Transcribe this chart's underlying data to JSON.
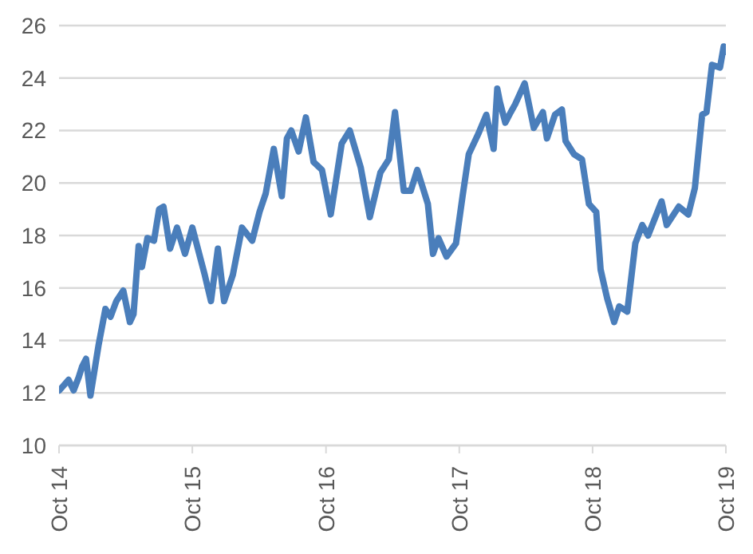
{
  "chart_data": {
    "type": "line",
    "x": [
      "2014-10-02",
      "2014-10-27",
      "2014-11-10",
      "2014-11-24",
      "2014-12-03",
      "2014-12-14",
      "2014-12-26",
      "2015-01-17",
      "2015-02-05",
      "2015-02-19",
      "2015-03-07",
      "2015-03-26",
      "2015-04-13",
      "2015-04-23",
      "2015-05-07",
      "2015-05-16",
      "2015-05-31",
      "2015-06-18",
      "2015-07-02",
      "2015-07-14",
      "2015-08-01",
      "2015-08-20",
      "2015-09-11",
      "2015-10-01",
      "2015-11-04",
      "2015-11-21",
      "2015-12-10",
      "2015-12-27",
      "2016-01-20",
      "2016-02-14",
      "2016-03-13",
      "2016-04-02",
      "2016-04-19",
      "2016-05-11",
      "2016-06-02",
      "2016-06-16",
      "2016-06-28",
      "2016-07-18",
      "2016-08-07",
      "2016-08-28",
      "2016-09-20",
      "2016-10-14",
      "2016-11-13",
      "2016-12-05",
      "2017-01-04",
      "2017-01-29",
      "2017-02-27",
      "2017-03-22",
      "2017-04-08",
      "2017-05-02",
      "2017-05-21",
      "2017-06-08",
      "2017-07-07",
      "2017-07-21",
      "2017-08-05",
      "2017-08-27",
      "2017-09-22",
      "2017-10-10",
      "2017-10-27",
      "2017-11-23",
      "2017-12-14",
      "2018-01-03",
      "2018-01-13",
      "2018-01-20",
      "2018-02-04",
      "2018-02-19",
      "2018-03-03",
      "2018-03-29",
      "2018-04-23",
      "2018-05-18",
      "2018-05-29",
      "2018-06-20",
      "2018-07-09",
      "2018-07-19",
      "2018-08-11",
      "2018-09-02",
      "2018-09-21",
      "2018-10-11",
      "2018-10-23",
      "2018-11-10",
      "2018-11-29",
      "2018-12-13",
      "2019-01-04",
      "2019-01-26",
      "2019-02-14",
      "2019-03-02",
      "2019-04-08",
      "2019-04-22",
      "2019-05-25",
      "2019-06-20",
      "2019-07-08",
      "2019-07-28",
      "2019-08-09",
      "2019-08-24",
      "2019-09-15",
      "2019-09-25",
      "2019-10-01"
    ],
    "series": [
      {
        "color": "#4a7ebb",
        "values": [
          12.1,
          12.5,
          12.1,
          12.6,
          13.0,
          13.3,
          11.9,
          13.8,
          15.2,
          14.9,
          15.5,
          15.9,
          14.7,
          15.0,
          17.6,
          16.8,
          17.9,
          17.8,
          19.0,
          19.1,
          17.5,
          18.3,
          17.3,
          18.3,
          16.5,
          15.5,
          17.5,
          15.5,
          16.5,
          18.3,
          17.8,
          18.9,
          19.6,
          21.3,
          19.5,
          21.7,
          22.0,
          21.2,
          22.5,
          20.8,
          20.5,
          18.8,
          21.5,
          22.0,
          20.6,
          18.7,
          20.4,
          20.9,
          22.7,
          19.7,
          19.7,
          20.5,
          19.2,
          17.3,
          17.9,
          17.2,
          17.7,
          19.5,
          21.1,
          21.9,
          22.6,
          21.3,
          23.6,
          23.1,
          22.3,
          22.7,
          23.0,
          23.8,
          22.1,
          22.7,
          21.7,
          22.6,
          22.8,
          21.6,
          21.1,
          20.9,
          19.2,
          18.9,
          16.7,
          15.6,
          14.7,
          15.3,
          15.1,
          17.7,
          18.4,
          18.0,
          19.3,
          18.4,
          19.1,
          18.8,
          19.8,
          22.6,
          22.7,
          24.5,
          24.4,
          25.2,
          25.0
        ]
      }
    ],
    "xlim": [
      "2014-10",
      "2019-10"
    ],
    "xticks": [
      {
        "value": "2014-10",
        "label": "Oct 14"
      },
      {
        "value": "2015-10",
        "label": "Oct 15"
      },
      {
        "value": "2016-10",
        "label": "Oct 16"
      },
      {
        "value": "2017-10",
        "label": "Oct 17"
      },
      {
        "value": "2018-10",
        "label": "Oct 18"
      },
      {
        "value": "2019-10",
        "label": "Oct 19"
      }
    ],
    "ylim": [
      10,
      26
    ],
    "yticks": [
      10,
      12,
      14,
      16,
      18,
      20,
      22,
      24,
      26
    ],
    "grid": "y",
    "legend": false
  }
}
